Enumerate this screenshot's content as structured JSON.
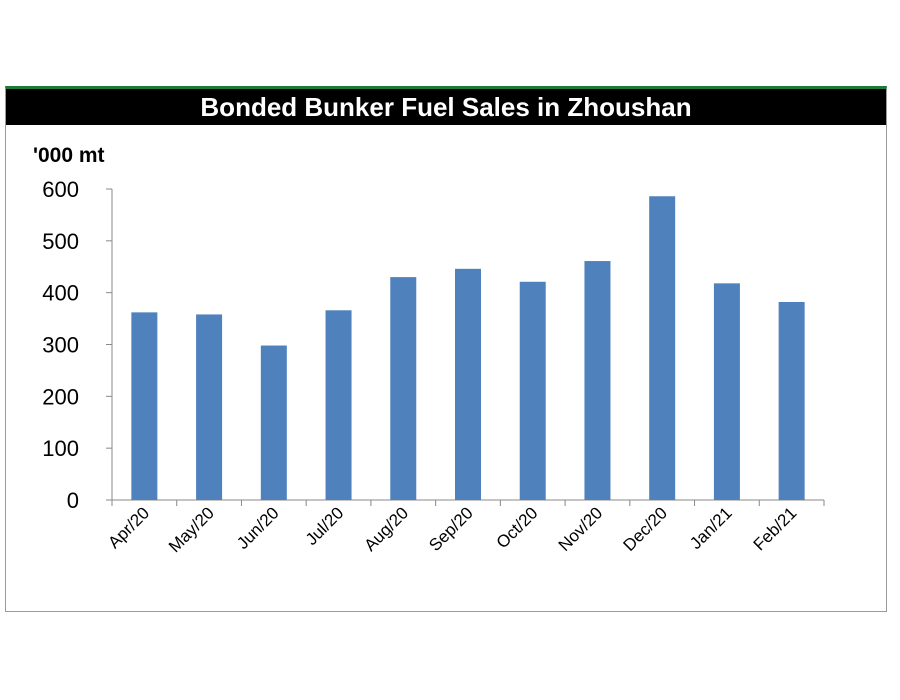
{
  "chart_data": {
    "type": "bar",
    "title": "Bonded Bunker Fuel Sales in Zhoushan",
    "ylabel": "'000 mt",
    "xlabel": "",
    "ylim": [
      0,
      600
    ],
    "yticks": [
      0,
      100,
      200,
      300,
      400,
      500,
      600
    ],
    "grid": false,
    "colors": {
      "bar": "#4f81bd",
      "title_bg": "#000000",
      "title_text": "#ffffff",
      "frame_top": "#1f7a3a"
    },
    "categories": [
      "Apr/20",
      "May/20",
      "Jun/20",
      "Jul/20",
      "Aug/20",
      "Sep/20",
      "Oct/20",
      "Nov/20",
      "Dec/20",
      "Jan/21",
      "Feb/21"
    ],
    "values": [
      362,
      358,
      298,
      366,
      430,
      446,
      421,
      461,
      586,
      418,
      382
    ]
  }
}
